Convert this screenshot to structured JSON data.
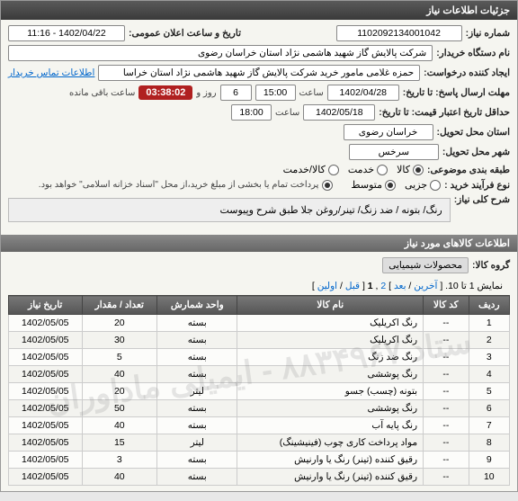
{
  "panel": {
    "title": "جزئیات اطلاعات نیاز"
  },
  "fields": {
    "reqno_label": "شماره نیاز:",
    "reqno": "1102092134001042",
    "pubdate_label": "تاریخ و ساعت اعلان عمومی:",
    "pubdate": "1402/04/22 - 11:16",
    "buyer_label": "نام دستگاه خریدار:",
    "buyer": "شرکت پالایش گاز شهید هاشمی نژاد   استان خراسان رضوی",
    "creator_label": "ایجاد کننده درخواست:",
    "creator": "حمزه غلامی مامور خرید شرکت پالایش گاز شهید هاشمی نژاد   استان خراسا",
    "contact_link": "اطلاعات تماس خریدار",
    "deadline_label": "مهلت ارسال پاسخ: تا تاریخ:",
    "deadline_date": "1402/04/28",
    "time_label": "ساعت",
    "deadline_time": "15:00",
    "days": "6",
    "days_label": "روز و",
    "countdown": "03:38:02",
    "remain_label": "ساعت باقی مانده",
    "validity_label": "حداقل تاریخ اعتبار قیمت: تا تاریخ:",
    "validity_date": "1402/05/18",
    "validity_time": "18:00",
    "province_label": "استان محل تحویل:",
    "province": "خراسان رضوی",
    "city_label": "شهر محل تحویل:",
    "city": "سرخس",
    "category_label": "طبقه بندی موضوعی:",
    "cat_goods": "کالا",
    "cat_service": "خدمت",
    "cat_both": "کالا/خدمت",
    "process_label": "نوع فرآیند خرید :",
    "proc_small": "جزیی",
    "proc_medium": "متوسط",
    "proc_note": "پرداخت تمام یا بخشی از مبلغ خرید،از محل \"اسناد خزانه اسلامی\" خواهد بود.",
    "desc_label": "شرح کلی نیاز:",
    "desc_text": "رنگ/ بتونه / ضد زنگ/ تینر/روغن جلا طبق شرح وپیوست"
  },
  "items_section": {
    "title": "اطلاعات کالاهای مورد نیاز",
    "group_label": "گروه کالا:",
    "group_value": "محصولات شیمیایی",
    "pager_text": "نمایش 1 تا 10. [",
    "pager_last": "آخرین",
    "pager_next": "بعد",
    "pager_sep1": " / ",
    "pager_p2": "2",
    "pager_comma": " ,",
    "pager_p1": "1",
    "pager_sep2": " [",
    "pager_prev": "قبل",
    "pager_first": "اولین",
    "pager_close": "]"
  },
  "table": {
    "headers": [
      "ردیف",
      "کد کالا",
      "نام کالا",
      "واحد شمارش",
      "تعداد / مقدار",
      "تاریخ نیاز"
    ],
    "rows": [
      [
        "1",
        "--",
        "رنگ اکریلیک",
        "بسته",
        "20",
        "1402/05/05"
      ],
      [
        "2",
        "--",
        "رنگ اکریلیک",
        "بسته",
        "30",
        "1402/05/05"
      ],
      [
        "3",
        "--",
        "رنگ ضد زنگ",
        "بسته",
        "5",
        "1402/05/05"
      ],
      [
        "4",
        "--",
        "رنگ پوششی",
        "بسته",
        "40",
        "1402/05/05"
      ],
      [
        "5",
        "--",
        "بتونه (چسب) جسو",
        "لیتر",
        "20",
        "1402/05/05"
      ],
      [
        "6",
        "--",
        "رنگ پوششی",
        "بسته",
        "50",
        "1402/05/05"
      ],
      [
        "7",
        "--",
        "رنگ پایه آب",
        "بسته",
        "40",
        "1402/05/05"
      ],
      [
        "8",
        "--",
        "مواد پرداخت کاری چوب (فینیشینگ)",
        "لیتر",
        "15",
        "1402/05/05"
      ],
      [
        "9",
        "--",
        "رقیق کننده (تینر) رنگ یا وارنیش",
        "بسته",
        "3",
        "1402/05/05"
      ],
      [
        "10",
        "--",
        "رقیق کننده (تینر) رنگ یا وارنیش",
        "بسته",
        "40",
        "1402/05/05"
      ]
    ]
  },
  "watermark": "ستاد ۸۸۳۴۹۶۷ - ایمیلی ماد‌اوران"
}
